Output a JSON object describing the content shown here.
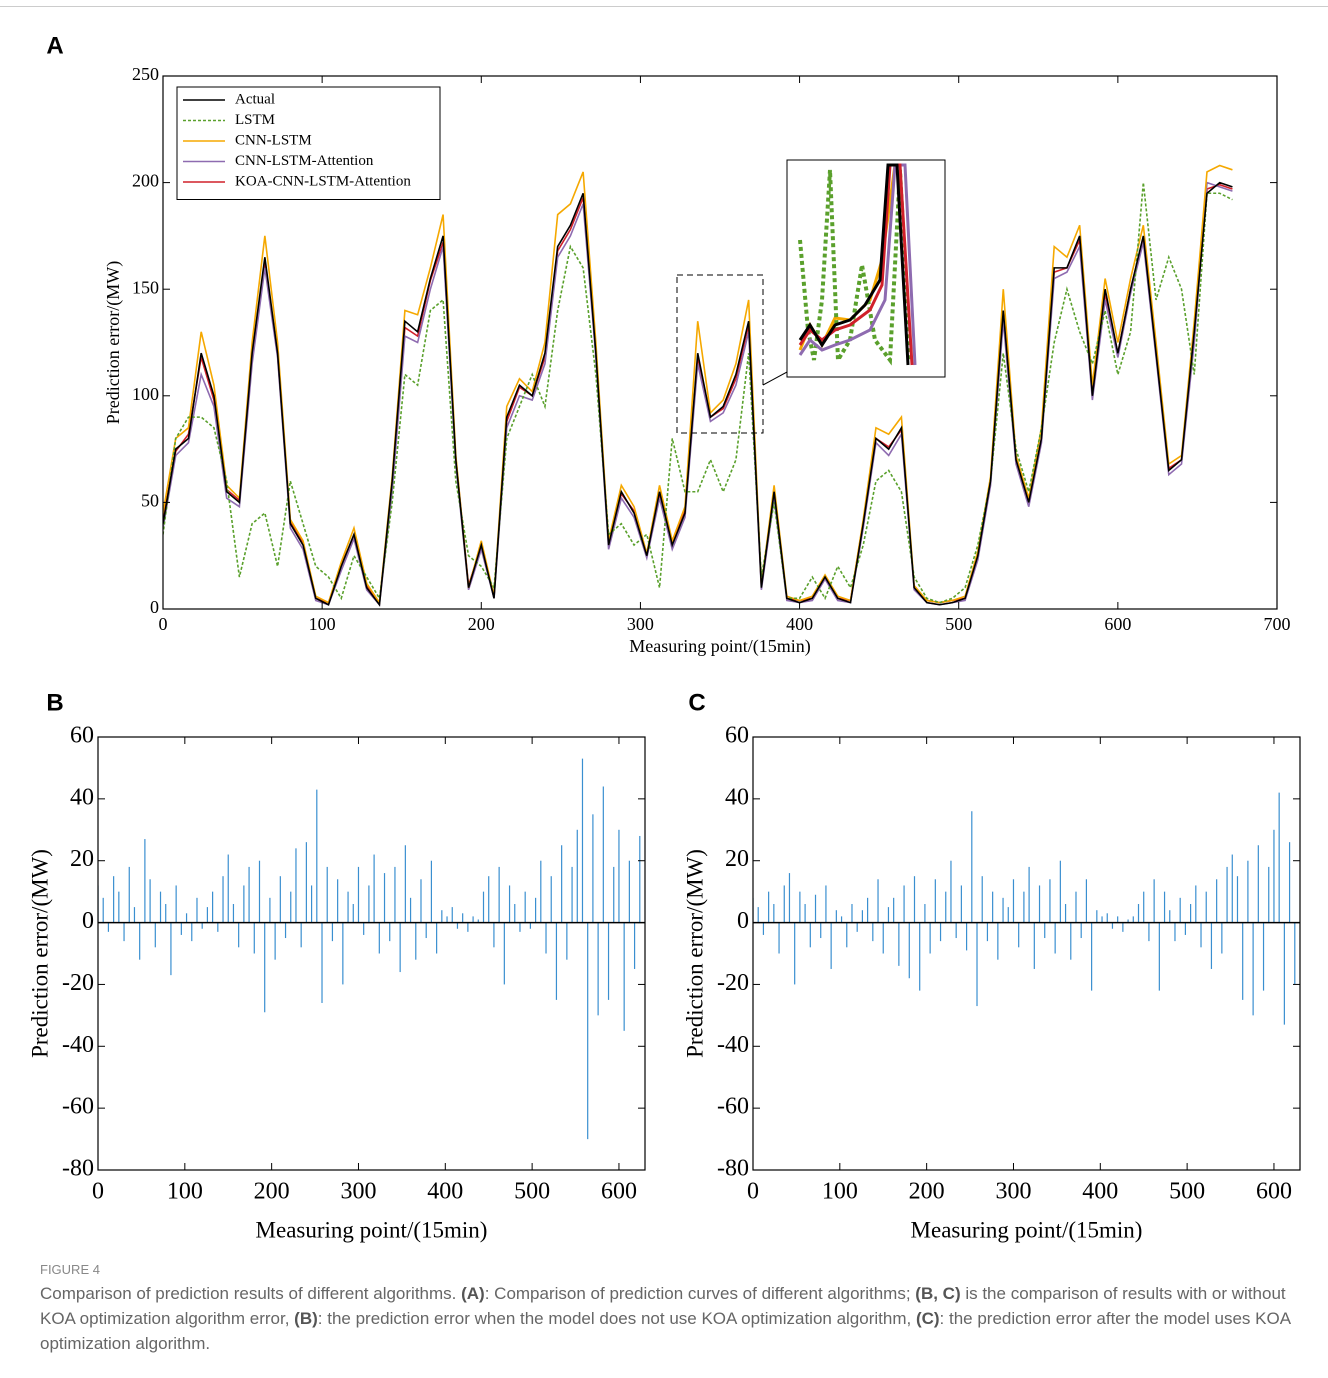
{
  "chart_data": [
    {
      "type": "line",
      "panel": "A",
      "ylabel": "Prediction error/(MW)",
      "xlabel": "Measuring point/(15min)",
      "xlim": [
        0,
        700
      ],
      "xticks": [
        0,
        100,
        200,
        300,
        400,
        500,
        600,
        700
      ],
      "ylim": [
        0,
        250
      ],
      "yticks": [
        0,
        50,
        100,
        150,
        200,
        250
      ],
      "legend": "upper left",
      "x": [
        0,
        8,
        16,
        24,
        32,
        40,
        48,
        56,
        64,
        72,
        80,
        88,
        96,
        104,
        112,
        120,
        128,
        136,
        144,
        152,
        160,
        168,
        176,
        184,
        192,
        200,
        208,
        216,
        224,
        232,
        240,
        248,
        256,
        264,
        272,
        280,
        288,
        296,
        304,
        312,
        320,
        328,
        336,
        344,
        352,
        360,
        368,
        376,
        384,
        392,
        400,
        408,
        416,
        424,
        432,
        440,
        448,
        456,
        464,
        472,
        480,
        488,
        496,
        504,
        512,
        520,
        528,
        536,
        544,
        552,
        560,
        568,
        576,
        584,
        592,
        600,
        608,
        616,
        624,
        632,
        640,
        648,
        656,
        664,
        672
      ],
      "series": [
        {
          "name": "Actual",
          "color": "#000000",
          "style": "solid",
          "values": [
            40,
            75,
            80,
            120,
            100,
            55,
            50,
            120,
            165,
            120,
            40,
            30,
            5,
            2,
            20,
            35,
            10,
            2,
            60,
            135,
            130,
            155,
            175,
            70,
            10,
            30,
            5,
            90,
            105,
            100,
            120,
            170,
            180,
            195,
            120,
            30,
            55,
            45,
            25,
            55,
            30,
            45,
            120,
            90,
            95,
            110,
            135,
            10,
            55,
            5,
            3,
            5,
            15,
            5,
            3,
            40,
            80,
            75,
            85,
            10,
            3,
            2,
            3,
            5,
            25,
            60,
            140,
            70,
            50,
            80,
            160,
            160,
            175,
            100,
            150,
            120,
            150,
            175,
            120,
            65,
            70,
            130,
            195,
            200,
            198
          ]
        },
        {
          "name": "LSTM",
          "color": "#5aa02c",
          "style": "dotted",
          "values": [
            35,
            80,
            90,
            90,
            85,
            60,
            15,
            40,
            45,
            20,
            60,
            40,
            20,
            15,
            5,
            25,
            15,
            5,
            50,
            110,
            105,
            140,
            145,
            60,
            25,
            20,
            10,
            80,
            95,
            110,
            95,
            140,
            170,
            160,
            110,
            35,
            40,
            30,
            35,
            10,
            80,
            55,
            55,
            70,
            55,
            70,
            120,
            15,
            50,
            5,
            5,
            15,
            5,
            20,
            10,
            30,
            60,
            65,
            55,
            15,
            5,
            3,
            5,
            10,
            30,
            60,
            120,
            75,
            55,
            85,
            125,
            150,
            130,
            115,
            140,
            110,
            130,
            200,
            145,
            165,
            150,
            110,
            195,
            195,
            192
          ]
        },
        {
          "name": "CNN-LSTM",
          "color": "#f5a800",
          "style": "solid",
          "values": [
            45,
            80,
            85,
            130,
            105,
            58,
            52,
            125,
            175,
            125,
            42,
            32,
            6,
            3,
            22,
            38,
            12,
            3,
            62,
            140,
            138,
            160,
            185,
            72,
            10,
            32,
            6,
            95,
            108,
            102,
            125,
            185,
            190,
            205,
            125,
            32,
            58,
            48,
            26,
            58,
            32,
            48,
            135,
            92,
            98,
            115,
            145,
            11,
            58,
            6,
            4,
            6,
            16,
            6,
            4,
            42,
            85,
            82,
            90,
            11,
            4,
            3,
            4,
            6,
            27,
            62,
            150,
            72,
            52,
            85,
            170,
            165,
            180,
            105,
            155,
            125,
            155,
            180,
            125,
            68,
            72,
            135,
            205,
            208,
            206
          ]
        },
        {
          "name": "CNN-LSTM-Attention",
          "color": "#8e6bb0",
          "style": "solid",
          "values": [
            38,
            72,
            78,
            110,
            95,
            52,
            48,
            115,
            160,
            118,
            38,
            28,
            4,
            2,
            18,
            33,
            9,
            2,
            55,
            128,
            125,
            150,
            170,
            68,
            9,
            28,
            5,
            85,
            100,
            98,
            115,
            165,
            175,
            190,
            118,
            28,
            52,
            43,
            24,
            52,
            28,
            43,
            115,
            88,
            92,
            105,
            130,
            9,
            52,
            4,
            3,
            4,
            14,
            4,
            3,
            38,
            78,
            72,
            82,
            9,
            3,
            2,
            3,
            4,
            23,
            58,
            135,
            68,
            48,
            78,
            155,
            158,
            170,
            98,
            145,
            118,
            148,
            172,
            118,
            63,
            68,
            125,
            200,
            198,
            196
          ]
        },
        {
          "name": "KOA-CNN-LSTM-Attention",
          "color": "#d0202a",
          "style": "solid",
          "values": [
            42,
            74,
            82,
            118,
            98,
            56,
            51,
            118,
            162,
            119,
            41,
            31,
            5,
            3,
            21,
            34,
            11,
            3,
            58,
            132,
            128,
            154,
            172,
            71,
            11,
            30,
            6,
            88,
            104,
            100,
            118,
            168,
            178,
            193,
            121,
            31,
            54,
            46,
            26,
            54,
            31,
            46,
            118,
            90,
            94,
            108,
            133,
            11,
            54,
            5,
            4,
            5,
            15,
            5,
            4,
            41,
            80,
            76,
            84,
            10,
            4,
            3,
            4,
            5,
            26,
            60,
            138,
            70,
            51,
            80,
            158,
            160,
            173,
            101,
            148,
            120,
            150,
            174,
            121,
            66,
            70,
            128,
            197,
            199,
            197
          ]
        }
      ]
    },
    {
      "type": "bar",
      "panel": "B",
      "ylabel": "Prediction error/(MW)",
      "xlabel": "Measuring point/(15min)",
      "color": "#3a8fd0",
      "xlim": [
        0,
        630
      ],
      "xticks": [
        0,
        100,
        200,
        300,
        400,
        500,
        600
      ],
      "ylim": [
        -80,
        60
      ],
      "yticks": [
        -80,
        -60,
        -40,
        -20,
        0,
        20,
        40,
        60
      ],
      "x": [
        0,
        6,
        12,
        18,
        24,
        30,
        36,
        42,
        48,
        54,
        60,
        66,
        72,
        78,
        84,
        90,
        96,
        102,
        108,
        114,
        120,
        126,
        132,
        138,
        144,
        150,
        156,
        162,
        168,
        174,
        180,
        186,
        192,
        198,
        204,
        210,
        216,
        222,
        228,
        234,
        240,
        246,
        252,
        258,
        264,
        270,
        276,
        282,
        288,
        294,
        300,
        306,
        312,
        318,
        324,
        330,
        336,
        342,
        348,
        354,
        360,
        366,
        372,
        378,
        384,
        390,
        396,
        402,
        408,
        414,
        420,
        426,
        432,
        438,
        444,
        450,
        456,
        462,
        468,
        474,
        480,
        486,
        492,
        498,
        504,
        510,
        516,
        522,
        528,
        534,
        540,
        546,
        552,
        558,
        564,
        570,
        576,
        582,
        588,
        594,
        600,
        606,
        612,
        618,
        624
      ],
      "values": [
        12,
        8,
        -3,
        15,
        10,
        -6,
        18,
        5,
        -12,
        27,
        14,
        -8,
        10,
        6,
        -17,
        12,
        -4,
        3,
        -6,
        8,
        -2,
        5,
        10,
        -3,
        15,
        22,
        6,
        -8,
        12,
        18,
        -10,
        20,
        -29,
        8,
        -12,
        15,
        -5,
        10,
        24,
        -8,
        26,
        12,
        43,
        -26,
        18,
        -6,
        14,
        -20,
        10,
        6,
        18,
        -4,
        12,
        22,
        -10,
        16,
        -6,
        18,
        -16,
        25,
        8,
        -12,
        14,
        -5,
        20,
        -10,
        4,
        2,
        5,
        -2,
        3,
        -3,
        2,
        1,
        10,
        15,
        -8,
        18,
        -20,
        12,
        6,
        -3,
        10,
        -2,
        8,
        20,
        -10,
        15,
        -25,
        25,
        -12,
        18,
        30,
        53,
        -70,
        35,
        -30,
        44,
        -25,
        18,
        30,
        -35,
        20,
        -15,
        28
      ]
    },
    {
      "type": "bar",
      "panel": "C",
      "ylabel": "Prediction error/(MW)",
      "xlabel": "Measuring point/(15min)",
      "color": "#3a8fd0",
      "xlim": [
        0,
        630
      ],
      "xticks": [
        0,
        100,
        200,
        300,
        400,
        500,
        600
      ],
      "ylim": [
        -80,
        60
      ],
      "yticks": [
        -80,
        -60,
        -40,
        -20,
        0,
        20,
        40,
        60
      ],
      "x": [
        0,
        6,
        12,
        18,
        24,
        30,
        36,
        42,
        48,
        54,
        60,
        66,
        72,
        78,
        84,
        90,
        96,
        102,
        108,
        114,
        120,
        126,
        132,
        138,
        144,
        150,
        156,
        162,
        168,
        174,
        180,
        186,
        192,
        198,
        204,
        210,
        216,
        222,
        228,
        234,
        240,
        246,
        252,
        258,
        264,
        270,
        276,
        282,
        288,
        294,
        300,
        306,
        312,
        318,
        324,
        330,
        336,
        342,
        348,
        354,
        360,
        366,
        372,
        378,
        384,
        390,
        396,
        402,
        408,
        414,
        420,
        426,
        432,
        438,
        444,
        450,
        456,
        462,
        468,
        474,
        480,
        486,
        492,
        498,
        504,
        510,
        516,
        522,
        528,
        534,
        540,
        546,
        552,
        558,
        564,
        570,
        576,
        582,
        588,
        594,
        600,
        606,
        612,
        618,
        624
      ],
      "values": [
        8,
        5,
        -4,
        10,
        6,
        -10,
        12,
        16,
        -20,
        10,
        6,
        -8,
        9,
        -5,
        12,
        -15,
        4,
        2,
        -8,
        6,
        -3,
        4,
        8,
        -6,
        14,
        -10,
        5,
        8,
        -14,
        12,
        -18,
        15,
        -22,
        6,
        -10,
        14,
        -6,
        10,
        20,
        -5,
        12,
        -9,
        36,
        -27,
        15,
        -6,
        10,
        -12,
        8,
        5,
        14,
        -8,
        10,
        18,
        -15,
        12,
        -5,
        14,
        -10,
        20,
        6,
        -12,
        10,
        -5,
        14,
        -22,
        4,
        2,
        3,
        -2,
        2,
        -3,
        1,
        2,
        6,
        10,
        -6,
        14,
        -22,
        10,
        4,
        -6,
        8,
        -4,
        6,
        12,
        -8,
        10,
        -15,
        14,
        -10,
        18,
        22,
        15,
        -25,
        20,
        -30,
        25,
        -22,
        18,
        30,
        42,
        -33,
        26,
        -20
      ]
    }
  ],
  "caption": {
    "label": "FIGURE 4",
    "segments": [
      "Comparison of prediction results of different algorithms. ",
      "(A)",
      ": Comparison of prediction curves of different algorithms; ",
      "(B, C)",
      " is the comparison of results with or without KOA optimization algorithm error, ",
      "(B)",
      ": the prediction error when the model does not use KOA optimization algorithm, ",
      "(C)",
      ": the prediction error after the model uses KOA optimization algorithm."
    ]
  }
}
